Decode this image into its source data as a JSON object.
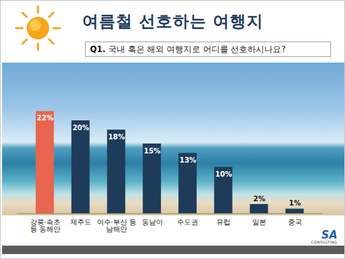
{
  "chart_data": {
    "type": "bar",
    "title": "여름철 선호하는 여행지",
    "subtitle_label": "Q1.",
    "subtitle": "국내 혹은 해외 여행지로 어디를 선호하시나요?",
    "categories": [
      "강릉·속초\n등 동해안",
      "제주도",
      "여수·부산 등\n남해안",
      "동남아",
      "수도권",
      "유럽",
      "일본",
      "중국"
    ],
    "values": [
      22,
      20,
      18,
      15,
      13,
      10,
      2,
      1
    ],
    "value_labels": [
      "22%",
      "20%",
      "18%",
      "15%",
      "13%",
      "10%",
      "2%",
      "1%"
    ],
    "colors": [
      "#e8654f",
      "#1e3c5a",
      "#1e3c5a",
      "#1e3c5a",
      "#1e3c5a",
      "#1e3c5a",
      "#1e3c5a",
      "#1e3c5a"
    ],
    "ylim": [
      0,
      30
    ],
    "data_labels": true,
    "tick_labels": "x",
    "grid": false,
    "logo": {
      "text": "SA",
      "subtext": "CONSULTING"
    }
  }
}
